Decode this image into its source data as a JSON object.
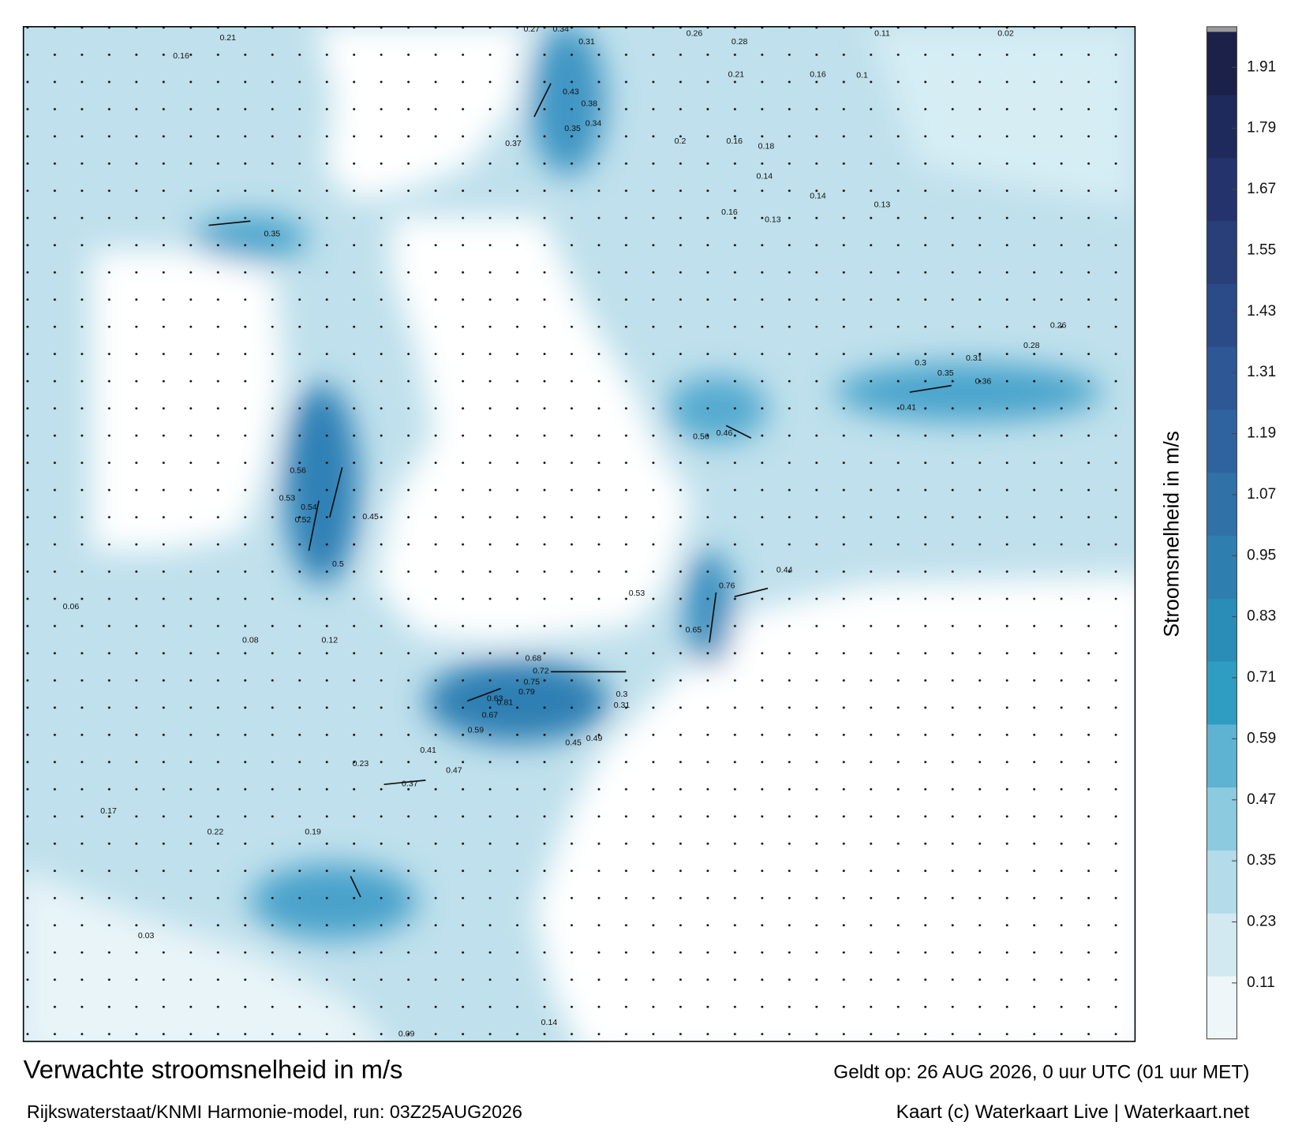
{
  "map": {
    "title": "Verwachte stroomsnelheid in m/s",
    "source": "Rijkswaterstaat/KNMI Harmonie-model, run: 03Z25AUG2026",
    "valid": "Geldt op: 26 AUG 2026, 0 uur UTC (01 uur MET)",
    "credit": "Kaart (c) Waterkaart Live | Waterkaart.net",
    "colorbar": {
      "label": "Stroomsnelheid in m/s",
      "lim": [
        0,
        1.98
      ],
      "ticks": [
        0.11,
        0.23,
        0.35,
        0.47,
        0.59,
        0.71,
        0.83,
        0.95,
        1.07,
        1.19,
        1.31,
        1.43,
        1.55,
        1.67,
        1.79,
        1.91
      ],
      "colors": [
        "#eef6f9",
        "#d2e9f1",
        "#b3dbe9",
        "#8ccadf",
        "#5db3d1",
        "#2f9cc1",
        "#2a8db7",
        "#2e7fb0",
        "#3071a8",
        "#2f63a0",
        "#2e5795",
        "#2b4a88",
        "#283f7a",
        "#24336b",
        "#1f2a5c",
        "#1b2148"
      ]
    },
    "speed_labels": [
      "0.27",
      "0.34",
      "0.31",
      "0.26",
      "0.28",
      "0.11",
      "0.02",
      "0.16",
      "0.21",
      "0.43",
      "0.38",
      "0.35",
      "0.34",
      "0.37",
      "0.21",
      "0.16",
      "0.1",
      "0.2",
      "0.16",
      "0.18",
      "0.14",
      "0.14",
      "0.13",
      "0.16",
      "0.13",
      "0.35",
      "0.52",
      "0.54",
      "0.56",
      "0.53",
      "0.45",
      "0.5",
      "0.46",
      "0.56",
      "0.76",
      "0.65",
      "0.68",
      "0.72",
      "0.75",
      "0.79",
      "0.81",
      "0.63",
      "0.67",
      "0.59",
      "0.53",
      "0.44",
      "0.47",
      "0.41",
      "0.37",
      "0.3",
      "0.31",
      "0.49",
      "0.45",
      "0.41",
      "0.36",
      "0.35",
      "0.3",
      "0.31",
      "0.28",
      "0.26",
      "0.14",
      "0.09",
      "0.03",
      "0.23",
      "0.17",
      "0.22",
      "0.19",
      "0.06",
      "0.08",
      "0.12"
    ]
  }
}
